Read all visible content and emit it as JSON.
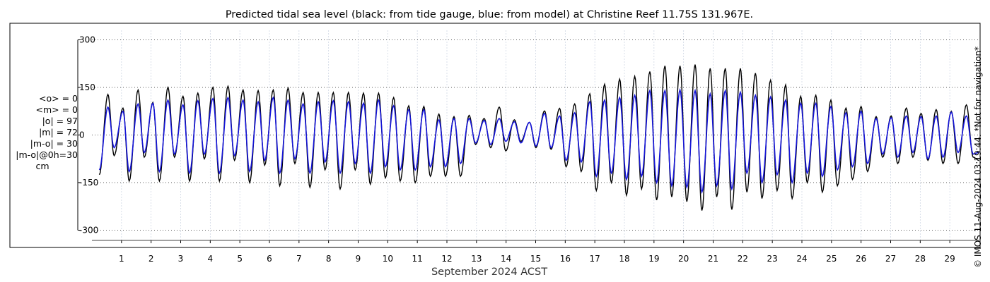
{
  "chart_data": {
    "type": "line",
    "title": "Predicted tidal sea level (black: from tide gauge, blue: from model) at Christine Reef 11.75S 131.967E.",
    "xlabel": "September 2024 ACST",
    "ylabel": "",
    "xlim": [
      0,
      30
    ],
    "ylim": [
      -330,
      330
    ],
    "yticks": [
      300,
      150,
      0,
      -150,
      -300
    ],
    "yticklabels": [
      "300",
      "150",
      "0",
      "-150",
      "-300"
    ],
    "xticks": [
      1,
      2,
      3,
      4,
      5,
      6,
      7,
      8,
      9,
      10,
      11,
      12,
      13,
      14,
      15,
      16,
      17,
      18,
      19,
      20,
      21,
      22,
      23,
      24,
      25,
      26,
      27,
      28,
      29
    ],
    "xticklabels": [
      "1",
      "2",
      "3",
      "4",
      "5",
      "6",
      "7",
      "8",
      "9",
      "10",
      "11",
      "12",
      "13",
      "14",
      "15",
      "16",
      "17",
      "18",
      "19",
      "20",
      "21",
      "22",
      "23",
      "24",
      "25",
      "26",
      "27",
      "28",
      "29"
    ],
    "grid": true,
    "series": [
      {
        "name": "",
        "color": "#000000",
        "x": [
          0.25,
          0.54,
          0.75,
          1.05,
          1.26,
          1.56,
          1.77,
          2.06,
          2.28,
          2.57,
          2.79,
          3.08,
          3.3,
          3.58,
          3.8,
          4.09,
          4.31,
          4.6,
          4.82,
          5.11,
          5.33,
          5.62,
          5.84,
          6.13,
          6.35,
          6.63,
          6.86,
          7.14,
          7.37,
          7.65,
          7.88,
          8.16,
          8.39,
          8.67,
          8.9,
          9.18,
          9.41,
          9.69,
          9.92,
          10.2,
          10.42,
          10.71,
          10.93,
          11.22,
          11.44,
          11.73,
          11.95,
          12.24,
          12.46,
          12.75,
          12.97,
          13.26,
          13.48,
          13.77,
          13.99,
          14.28,
          14.5,
          14.79,
          15.01,
          15.3,
          15.52,
          15.81,
          16.03,
          16.32,
          16.54,
          16.83,
          17.05,
          17.33,
          17.56,
          17.84,
          18.07,
          18.35,
          18.58,
          18.86,
          19.09,
          19.37,
          19.6,
          19.88,
          20.11,
          20.39,
          20.62,
          20.9,
          21.12,
          21.41,
          21.63,
          21.92,
          22.14,
          22.43,
          22.65,
          22.94,
          23.16,
          23.45,
          23.67,
          23.96,
          24.18,
          24.47,
          24.69,
          24.98,
          25.2,
          25.49,
          25.71,
          26.0,
          26.22,
          26.51,
          26.73,
          27.02,
          27.24,
          27.53,
          27.75,
          28.03,
          28.26,
          28.54,
          28.77,
          29.05,
          29.28,
          29.56,
          29.79,
          29.99
        ],
        "y": [
          -125,
          128,
          -65,
          85,
          -145,
          142,
          -70,
          103,
          -145,
          150,
          -70,
          122,
          -145,
          132,
          -75,
          150,
          -145,
          154,
          -80,
          142,
          -150,
          140,
          -95,
          142,
          -160,
          148,
          -90,
          134,
          -165,
          134,
          -110,
          134,
          -170,
          134,
          -110,
          132,
          -155,
          132,
          -135,
          118,
          -145,
          92,
          -150,
          90,
          -130,
          66,
          -130,
          58,
          -130,
          62,
          -30,
          52,
          -40,
          88,
          -50,
          48,
          -20,
          40,
          -40,
          76,
          -45,
          84,
          -100,
          98,
          -115,
          130,
          -175,
          160,
          -150,
          176,
          -190,
          185,
          -170,
          200,
          -205,
          218,
          -195,
          218,
          -210,
          222,
          -238,
          210,
          -195,
          210,
          -235,
          210,
          -180,
          195,
          -200,
          173,
          -175,
          158,
          -200,
          122,
          -150,
          125,
          -180,
          110,
          -160,
          85,
          -140,
          90,
          -115,
          58,
          -70,
          60,
          -90,
          85,
          -70,
          68,
          -80,
          80,
          -90,
          75,
          -90,
          95,
          -70,
          -80
        ]
      },
      {
        "name": "",
        "color": "#1414d8",
        "x": [
          0.25,
          0.54,
          0.75,
          1.05,
          1.26,
          1.56,
          1.77,
          2.06,
          2.28,
          2.57,
          2.79,
          3.08,
          3.3,
          3.58,
          3.8,
          4.09,
          4.31,
          4.6,
          4.82,
          5.11,
          5.33,
          5.62,
          5.84,
          6.13,
          6.35,
          6.63,
          6.86,
          7.14,
          7.37,
          7.65,
          7.88,
          8.16,
          8.39,
          8.67,
          8.9,
          9.18,
          9.41,
          9.69,
          9.92,
          10.2,
          10.42,
          10.71,
          10.93,
          11.22,
          11.44,
          11.73,
          11.95,
          12.24,
          12.46,
          12.75,
          12.97,
          13.26,
          13.48,
          13.77,
          13.99,
          14.28,
          14.5,
          14.79,
          15.01,
          15.3,
          15.52,
          15.81,
          16.03,
          16.32,
          16.54,
          16.83,
          17.05,
          17.33,
          17.56,
          17.84,
          18.07,
          18.35,
          18.58,
          18.86,
          19.09,
          19.37,
          19.6,
          19.88,
          20.11,
          20.39,
          20.62,
          20.9,
          21.12,
          21.41,
          21.63,
          21.92,
          22.14,
          22.43,
          22.65,
          22.94,
          23.16,
          23.45,
          23.67,
          23.96,
          24.18,
          24.47,
          24.69,
          24.98,
          25.2,
          25.49,
          25.71,
          26.0,
          26.22,
          26.51,
          26.73,
          27.02,
          27.24,
          27.53,
          27.75,
          28.03,
          28.26,
          28.54,
          28.77,
          29.05,
          29.28,
          29.56,
          29.79,
          29.99
        ],
        "y": [
          -110,
          88,
          -40,
          75,
          -115,
          98,
          -55,
          100,
          -115,
          110,
          -60,
          95,
          -120,
          108,
          -60,
          115,
          -120,
          118,
          -65,
          110,
          -115,
          105,
          -80,
          118,
          -120,
          110,
          -75,
          98,
          -120,
          105,
          -85,
          108,
          -120,
          105,
          -90,
          100,
          -120,
          110,
          -100,
          92,
          -110,
          80,
          -110,
          80,
          -100,
          48,
          -100,
          52,
          -90,
          52,
          -25,
          46,
          -30,
          52,
          -20,
          42,
          -25,
          40,
          -35,
          68,
          -40,
          60,
          -80,
          70,
          -85,
          105,
          -130,
          110,
          -120,
          118,
          -140,
          125,
          -130,
          140,
          -150,
          140,
          -160,
          142,
          -165,
          140,
          -180,
          130,
          -160,
          140,
          -170,
          135,
          -120,
          125,
          -150,
          120,
          -125,
          110,
          -150,
          100,
          -120,
          100,
          -130,
          90,
          -110,
          70,
          -100,
          75,
          -90,
          52,
          -60,
          55,
          -70,
          60,
          -55,
          58,
          -75,
          60,
          -70,
          72,
          -55,
          60,
          -60,
          -55
        ]
      }
    ],
    "stats": [
      "<o> = 0",
      "<m> = 0",
      "|o| = 97",
      "|m| = 72",
      "|m-o| = 30",
      "|m-o|@0h=30",
      "cm"
    ],
    "watermark": "© IMOS 11-Aug-2024 03:19:44. *Not for navigation*"
  }
}
